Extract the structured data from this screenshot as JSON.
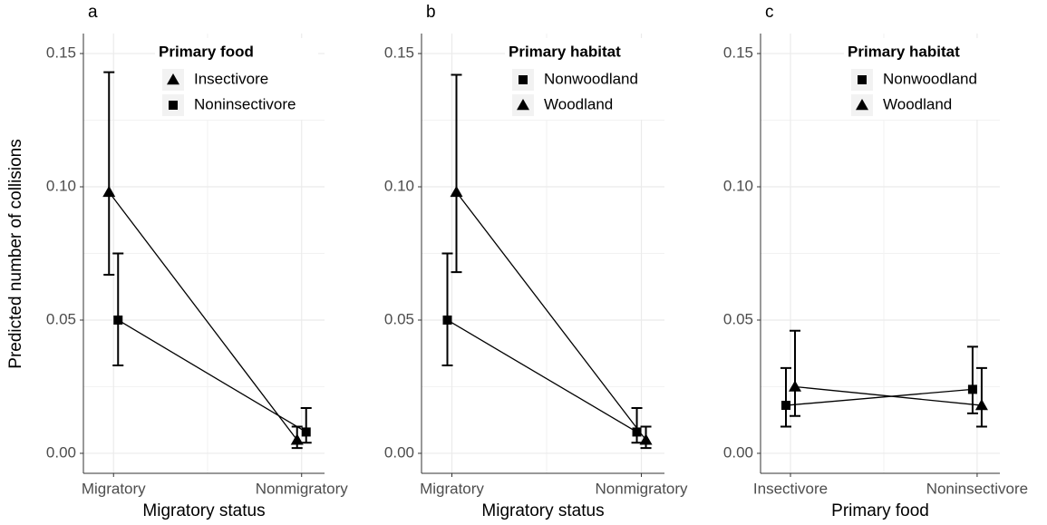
{
  "chart_data": [
    {
      "type": "line",
      "panel_label": "a",
      "ylabel": "Predicted number of collisions",
      "xlabel": "Migratory status",
      "legend_title": "Primary food",
      "categories": [
        "Migratory",
        "Nonmigratory"
      ],
      "series": [
        {
          "name": "Insectivore",
          "shape": "triangle",
          "color": "#000000",
          "values": [
            0.098,
            0.005
          ],
          "lower": [
            0.067,
            0.002
          ],
          "upper": [
            0.143,
            0.01
          ]
        },
        {
          "name": "Noninsectivore",
          "shape": "square",
          "color": "#000000",
          "values": [
            0.05,
            0.008
          ],
          "lower": [
            0.033,
            0.004
          ],
          "upper": [
            0.075,
            0.017
          ]
        }
      ],
      "ylim": [
        -0.0075,
        0.1575
      ],
      "yticks": [
        {
          "value": 0,
          "label": "0.00"
        },
        0.05,
        {
          "value": 0.1,
          "label": "0.10"
        },
        0.15
      ],
      "yminor": [
        0.025,
        0.075,
        0.125
      ],
      "grid": true
    },
    {
      "type": "line",
      "panel_label": "b",
      "xlabel": "Migratory status",
      "legend_title": "Primary habitat",
      "categories": [
        "Migratory",
        "Nonmigratory"
      ],
      "series": [
        {
          "name": "Nonwoodland",
          "shape": "square",
          "color": "#000000",
          "values": [
            0.05,
            0.008
          ],
          "lower": [
            0.033,
            0.004
          ],
          "upper": [
            0.075,
            0.017
          ]
        },
        {
          "name": "Woodland",
          "shape": "triangle",
          "color": "#000000",
          "values": [
            0.098,
            0.005
          ],
          "lower": [
            0.068,
            0.002
          ],
          "upper": [
            0.142,
            0.01
          ]
        }
      ],
      "ylim": [
        -0.0075,
        0.1575
      ],
      "yticks": [
        {
          "value": 0,
          "label": "0.00"
        },
        0.05,
        {
          "value": 0.1,
          "label": "0.10"
        },
        0.15
      ],
      "yminor": [
        0.025,
        0.075,
        0.125
      ],
      "grid": true
    },
    {
      "type": "line",
      "panel_label": "c",
      "xlabel": "Primary food",
      "legend_title": "Primary habitat",
      "categories": [
        "Insectivore",
        "Noninsectivore"
      ],
      "series": [
        {
          "name": "Nonwoodland",
          "shape": "square",
          "color": "#000000",
          "values": [
            0.018,
            0.024
          ],
          "lower": [
            0.01,
            0.015
          ],
          "upper": [
            0.032,
            0.04
          ]
        },
        {
          "name": "Woodland",
          "shape": "triangle",
          "color": "#000000",
          "values": [
            0.025,
            0.018
          ],
          "lower": [
            0.014,
            0.01
          ],
          "upper": [
            0.046,
            0.032
          ]
        }
      ],
      "ylim": [
        -0.0075,
        0.1575
      ],
      "yticks": [
        {
          "value": 0,
          "label": "0.00"
        },
        0.05,
        {
          "value": 0.1,
          "label": "0.10"
        },
        0.15
      ],
      "yminor": [
        0.025,
        0.075,
        0.125
      ],
      "grid": true
    }
  ]
}
